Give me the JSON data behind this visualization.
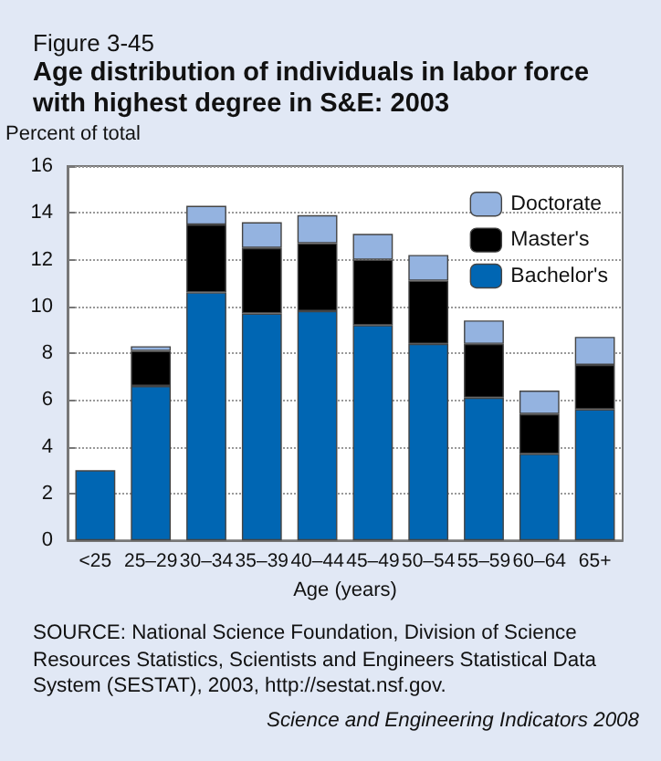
{
  "chart_data": {
    "type": "bar",
    "subtitle": "Figure 3-45",
    "title": "Age distribution of individuals in labor force with highest degree in S&E: 2003",
    "ylabel": "Percent of total",
    "xlabel": "Age (years)",
    "categories": [
      "<25",
      "25–29",
      "30–34",
      "35–39",
      "40–44",
      "45–49",
      "50–54",
      "55–59",
      "60–64",
      "65+"
    ],
    "stacked": true,
    "series": [
      {
        "name": "Bachelor's",
        "color": "#0066b3",
        "values": [
          3.0,
          6.6,
          10.6,
          9.7,
          9.8,
          9.2,
          8.4,
          6.1,
          3.7,
          5.6
        ]
      },
      {
        "name": "Master's",
        "color": "#000000",
        "values": [
          null,
          1.5,
          2.9,
          2.8,
          2.9,
          2.8,
          2.7,
          2.3,
          1.7,
          1.9
        ]
      },
      {
        "name": "Doctorate",
        "color": "#94b3e0",
        "values": [
          null,
          0.2,
          0.8,
          1.1,
          1.2,
          1.1,
          1.1,
          1.0,
          1.0,
          1.2
        ]
      }
    ],
    "ylim": [
      0,
      16
    ],
    "yticks": [
      0,
      2,
      4,
      6,
      8,
      10,
      12,
      14,
      16
    ],
    "grid": "y",
    "legend": "top right",
    "annotations": [
      "SOURCE: National Science Foundation, Division of Science Resources Statistics, Scientists and Engineers Statistical Data System (SESTAT), 2003, http://sestat.nsf.gov.",
      "Science and Engineering Indicators 2008"
    ]
  }
}
